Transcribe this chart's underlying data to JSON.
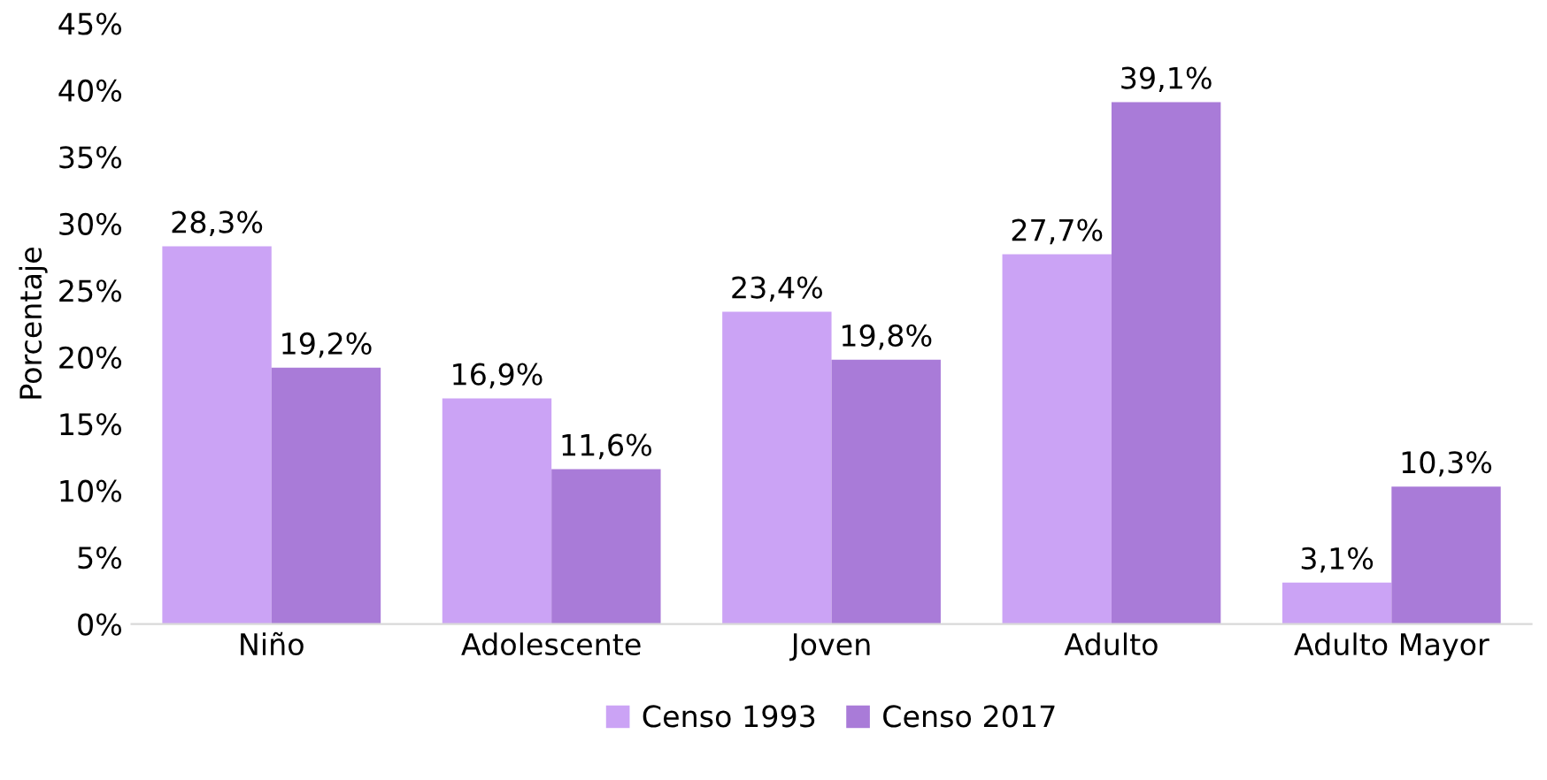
{
  "chart_data": {
    "type": "bar",
    "ylabel": "Porcentaje",
    "categories": [
      "Niño",
      "Adolescente",
      "Joven",
      "Adulto",
      "Adulto Mayor"
    ],
    "series": [
      {
        "name": "Censo 1993",
        "color": "#cba3f5",
        "values": [
          28.3,
          16.9,
          23.4,
          27.7,
          3.1
        ],
        "value_labels": [
          "28,3%",
          "16,9%",
          "23,4%",
          "27,7%",
          "3,1%"
        ]
      },
      {
        "name": "Censo 2017",
        "color": "#a97bd8",
        "values": [
          19.2,
          11.6,
          19.8,
          39.1,
          10.3
        ],
        "value_labels": [
          "19,2%",
          "11,6%",
          "19,8%",
          "39,1%",
          "10,3%"
        ]
      }
    ],
    "ylim": [
      0,
      45
    ],
    "yticks": [
      {
        "value": 0,
        "label": "0%"
      },
      {
        "value": 5,
        "label": "5%"
      },
      {
        "value": 10,
        "label": "10%"
      },
      {
        "value": 15,
        "label": "15%"
      },
      {
        "value": 20,
        "label": "20%"
      },
      {
        "value": 25,
        "label": "25%"
      },
      {
        "value": 30,
        "label": "30%"
      },
      {
        "value": 35,
        "label": "35%"
      },
      {
        "value": 40,
        "label": "40%"
      },
      {
        "value": 45,
        "label": "45%"
      }
    ],
    "grid": false,
    "legend": "bottom"
  }
}
